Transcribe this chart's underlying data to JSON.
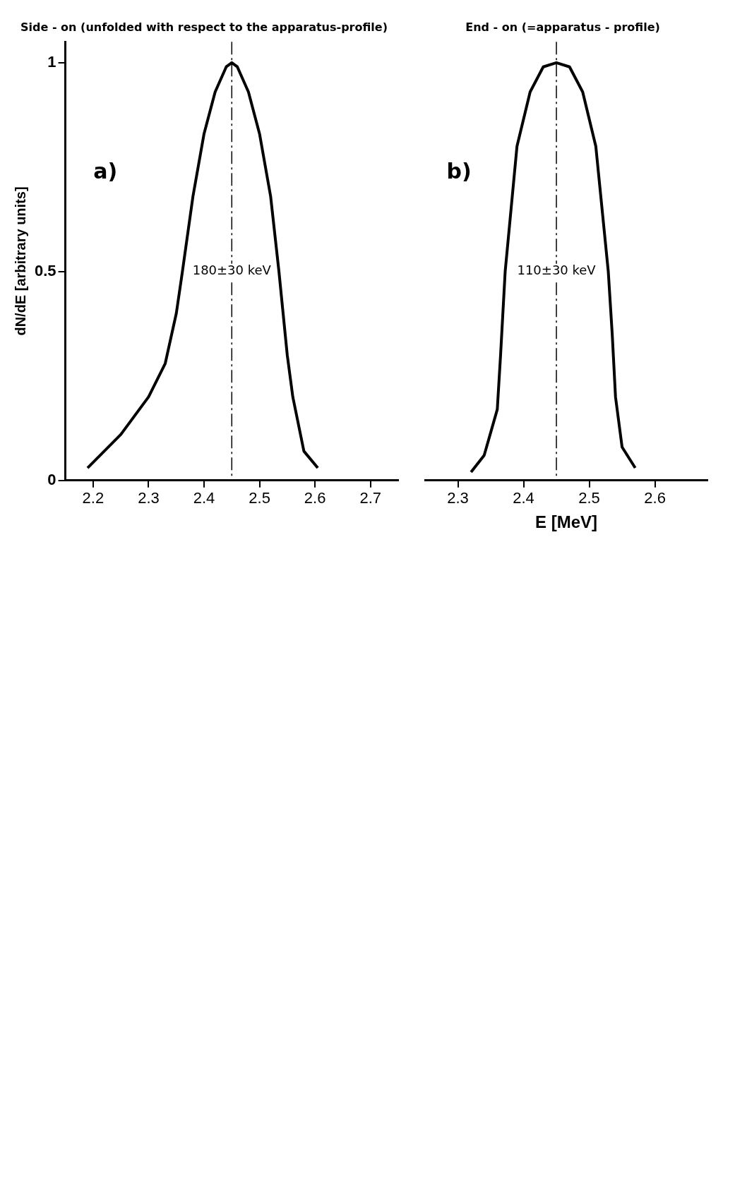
{
  "chart_data": [
    {
      "type": "line",
      "title": "End - on (=apparatus - profile)",
      "xlabel": "E [MeV]",
      "annotations": [
        "b)",
        {
          "text": "110±30 keV",
          "x": 2.45,
          "y": 0.5
        }
      ],
      "x": [
        2.32,
        2.34,
        2.36,
        2.365,
        2.372,
        2.39,
        2.41,
        2.43,
        2.45,
        2.47,
        2.49,
        2.51,
        2.529,
        2.535,
        2.54,
        2.55,
        2.57
      ],
      "series": [
        {
          "color": "#000000",
          "values": [
            0.02,
            0.06,
            0.17,
            0.3,
            0.5,
            0.8,
            0.93,
            0.99,
            1,
            0.99,
            0.93,
            0.8,
            0.5,
            0.35,
            0.2,
            0.08,
            0.03
          ]
        }
      ],
      "xlim": [
        2.25,
        2.68
      ],
      "xticks": [
        2.3,
        2.4,
        2.5,
        2.6
      ],
      "ylim": [
        0,
        1.05
      ],
      "yticks": [
        0,
        0.5,
        1
      ],
      "tick_labels": "x",
      "ref_lines": [
        {
          "axis": "x",
          "value": 2.45,
          "line_style": "dashed"
        }
      ]
    },
    {
      "type": "line",
      "title": "Side - on (unfolded with respect to the apparatus-profile)",
      "ylabel": "dN/dE [arbitrary units]",
      "annotations": [
        "a)",
        {
          "text": "180±30 keV",
          "x": 2.45,
          "y": 0.5
        }
      ],
      "x": [
        2.19,
        2.25,
        2.3,
        2.33,
        2.35,
        2.361,
        2.38,
        2.4,
        2.42,
        2.44,
        2.45,
        2.46,
        2.48,
        2.5,
        2.52,
        2.535,
        2.55,
        2.56,
        2.58,
        2.605
      ],
      "series": [
        {
          "color": "#000000",
          "values": [
            0.03,
            0.11,
            0.2,
            0.28,
            0.4,
            0.5,
            0.68,
            0.83,
            0.93,
            0.99,
            1,
            0.99,
            0.93,
            0.83,
            0.68,
            0.5,
            0.3,
            0.2,
            0.07,
            0.03
          ]
        }
      ],
      "xlim": [
        2.15,
        2.75
      ],
      "xticks": [
        2.2,
        2.3,
        2.4,
        2.5,
        2.6,
        2.7
      ],
      "ylim": [
        0,
        1.05
      ],
      "yticks": [
        0,
        0.5,
        1
      ],
      "ref_lines": [
        {
          "axis": "x",
          "value": 2.45,
          "line_style": "dashed"
        }
      ]
    }
  ]
}
